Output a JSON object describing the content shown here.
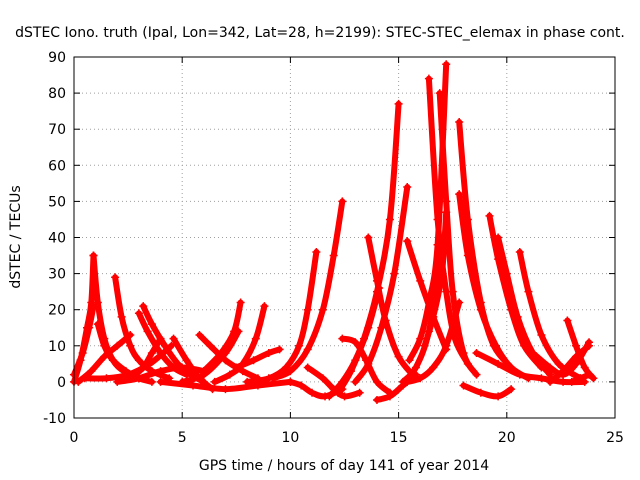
{
  "chart_data": {
    "type": "scatter",
    "title": "dSTEC Iono. truth (Ipal, Lon=342, Lat=28, h=2199): STEC-STEC_elemax in phase cont.",
    "xlabel": "GPS time / hours of day 141 of year 2014",
    "ylabel": "dSTEC  / TECUs",
    "xlim": [
      0,
      25
    ],
    "ylim": [
      -10,
      90
    ],
    "xticks": [
      0,
      5,
      10,
      15,
      20,
      25
    ],
    "yticks": [
      -10,
      0,
      10,
      20,
      30,
      40,
      50,
      60,
      70,
      80,
      90
    ],
    "grid": true,
    "marker": "+",
    "color": "#ff0000",
    "series": [
      {
        "x": [
          0.0,
          0.3,
          0.6,
          0.8,
          0.9
        ],
        "y": [
          0,
          6,
          15,
          22,
          35
        ]
      },
      {
        "x": [
          0.9,
          1.1,
          1.4,
          1.8,
          2.3,
          3.0,
          3.6
        ],
        "y": [
          35,
          22,
          12,
          6,
          3,
          1,
          0
        ]
      },
      {
        "x": [
          0.0,
          0.4,
          0.7,
          0.9
        ],
        "y": [
          2,
          8,
          15,
          21
        ]
      },
      {
        "x": [
          1.1,
          1.4,
          1.8,
          2.4,
          3.0
        ],
        "y": [
          16,
          10,
          6,
          3,
          1
        ]
      },
      {
        "x": [
          0.2,
          0.8,
          1.4,
          2.0,
          2.6
        ],
        "y": [
          0,
          3,
          7,
          10,
          13
        ]
      },
      {
        "x": [
          1.9,
          2.2,
          2.6,
          3.0,
          3.6,
          4.4
        ],
        "y": [
          29,
          18,
          10,
          6,
          3,
          1
        ]
      },
      {
        "x": [
          3.0,
          3.4,
          4.0,
          4.6,
          5.2
        ],
        "y": [
          19,
          14,
          8,
          4,
          2
        ]
      },
      {
        "x": [
          3.2,
          3.6,
          4.2,
          4.8,
          5.4,
          6.0
        ],
        "y": [
          21,
          16,
          10,
          5,
          2,
          0
        ]
      },
      {
        "x": [
          0.5,
          1.5,
          2.5,
          3.5,
          4.5
        ],
        "y": [
          1,
          1,
          2,
          5,
          10
        ]
      },
      {
        "x": [
          2.0,
          3.0,
          4.0,
          5.0,
          6.0
        ],
        "y": [
          0,
          1,
          3,
          4,
          3
        ]
      },
      {
        "x": [
          2.6,
          3.2,
          3.6,
          4.0
        ],
        "y": [
          1,
          4,
          8,
          12
        ]
      },
      {
        "x": [
          4.6,
          5.2,
          5.8,
          6.4
        ],
        "y": [
          12,
          6,
          1,
          -2
        ]
      },
      {
        "x": [
          5.0,
          6.0,
          7.0,
          7.6
        ],
        "y": [
          0,
          2,
          8,
          14
        ]
      },
      {
        "x": [
          5.8,
          6.3,
          7.0,
          7.8,
          8.5
        ],
        "y": [
          13,
          10,
          6,
          3,
          1
        ]
      },
      {
        "x": [
          6.0,
          6.8,
          7.4,
          7.7
        ],
        "y": [
          3,
          8,
          14,
          22
        ]
      },
      {
        "x": [
          6.5,
          7.2,
          7.8,
          8.4,
          8.8
        ],
        "y": [
          0,
          2,
          5,
          12,
          21
        ]
      },
      {
        "x": [
          7.5,
          8.3,
          9.0,
          9.5
        ],
        "y": [
          4,
          6,
          8,
          9
        ]
      },
      {
        "x": [
          4.0,
          5.5,
          7.0,
          8.5,
          10.0
        ],
        "y": [
          0,
          -1,
          -2,
          -1,
          0
        ]
      },
      {
        "x": [
          8.0,
          9.0,
          9.8,
          10.4,
          10.8,
          11.2
        ],
        "y": [
          0,
          1,
          4,
          10,
          20,
          36
        ]
      },
      {
        "x": [
          9.2,
          10.0,
          10.8,
          11.5,
          12.0,
          12.4
        ],
        "y": [
          1,
          3,
          9,
          20,
          35,
          50
        ]
      },
      {
        "x": [
          10.0,
          10.5,
          11.0,
          11.6,
          12.4
        ],
        "y": [
          0,
          -1,
          -3,
          -4,
          -2
        ]
      },
      {
        "x": [
          10.8,
          11.5,
          12.0,
          12.5,
          13.2
        ],
        "y": [
          4,
          1,
          -2,
          -4,
          -3
        ]
      },
      {
        "x": [
          11.8,
          12.4,
          13.0,
          13.6,
          14.1
        ],
        "y": [
          -4,
          0,
          6,
          15,
          26
        ]
      },
      {
        "x": [
          12.2,
          12.8,
          13.4,
          14.0,
          14.6,
          15.0
        ],
        "y": [
          -3,
          3,
          12,
          25,
          45,
          77
        ]
      },
      {
        "x": [
          12.4,
          13.0,
          13.5,
          14.0,
          14.6
        ],
        "y": [
          12,
          11,
          6,
          0,
          -3
        ]
      },
      {
        "x": [
          13.0,
          13.6,
          14.2,
          14.8,
          15.4
        ],
        "y": [
          0,
          5,
          15,
          30,
          54
        ]
      },
      {
        "x": [
          13.6,
          14.0,
          14.4,
          15.0,
          15.8
        ],
        "y": [
          40,
          28,
          17,
          7,
          1
        ]
      },
      {
        "x": [
          14.0,
          14.6,
          15.2,
          15.8
        ],
        "y": [
          -5,
          -4,
          -1,
          2
        ]
      },
      {
        "x": [
          15.2,
          15.8,
          16.4,
          17.0
        ],
        "y": [
          0,
          4,
          14,
          35
        ]
      },
      {
        "x": [
          15.5,
          16.0,
          16.4,
          16.8,
          17.2
        ],
        "y": [
          6,
          12,
          22,
          38,
          88
        ]
      },
      {
        "x": [
          15.4,
          16.0,
          16.6,
          17.2,
          17.8
        ],
        "y": [
          0,
          1,
          4,
          10,
          22
        ]
      },
      {
        "x": [
          15.4,
          16.0,
          16.6,
          17.2
        ],
        "y": [
          39,
          28,
          18,
          9
        ]
      },
      {
        "x": [
          16.2,
          16.6,
          17.0,
          17.2
        ],
        "y": [
          10,
          18,
          30,
          47
        ]
      },
      {
        "x": [
          16.4,
          16.8,
          17.2,
          17.6,
          18.2
        ],
        "y": [
          84,
          45,
          25,
          12,
          5
        ]
      },
      {
        "x": [
          16.9,
          17.2,
          17.5,
          18.0,
          18.6
        ],
        "y": [
          80,
          50,
          25,
          8,
          2
        ]
      },
      {
        "x": [
          17.8,
          18.2,
          18.8,
          19.4,
          20.2
        ],
        "y": [
          72,
          45,
          22,
          10,
          4
        ]
      },
      {
        "x": [
          17.8,
          18.2,
          18.8,
          19.5,
          20.2,
          21.0
        ],
        "y": [
          52,
          35,
          20,
          10,
          4,
          1
        ]
      },
      {
        "x": [
          19.2,
          19.6,
          20.2,
          20.8,
          21.6
        ],
        "y": [
          46,
          34,
          20,
          10,
          4
        ]
      },
      {
        "x": [
          19.6,
          20.0,
          20.5,
          21.2,
          22.0
        ],
        "y": [
          40,
          30,
          18,
          8,
          2
        ]
      },
      {
        "x": [
          20.6,
          21.0,
          21.6,
          22.4,
          23.4
        ],
        "y": [
          36,
          25,
          13,
          5,
          1
        ]
      },
      {
        "x": [
          18.0,
          18.8,
          19.6,
          20.2
        ],
        "y": [
          -1,
          -3,
          -4,
          -2
        ]
      },
      {
        "x": [
          18.6,
          19.6,
          20.6,
          21.6,
          22.6,
          23.6
        ],
        "y": [
          8,
          5,
          2,
          1,
          0,
          0
        ]
      },
      {
        "x": [
          21.2,
          22.0,
          22.6,
          23.2,
          23.8
        ],
        "y": [
          8,
          4,
          2,
          5,
          11
        ]
      },
      {
        "x": [
          22.0,
          22.6,
          23.2,
          23.8
        ],
        "y": [
          0,
          3,
          7,
          10
        ]
      },
      {
        "x": [
          22.8,
          23.2,
          23.6,
          24.0
        ],
        "y": [
          17,
          10,
          4,
          1
        ]
      },
      {
        "x": [
          23.0,
          23.4,
          23.8
        ],
        "y": [
          0,
          1,
          2
        ]
      }
    ]
  }
}
